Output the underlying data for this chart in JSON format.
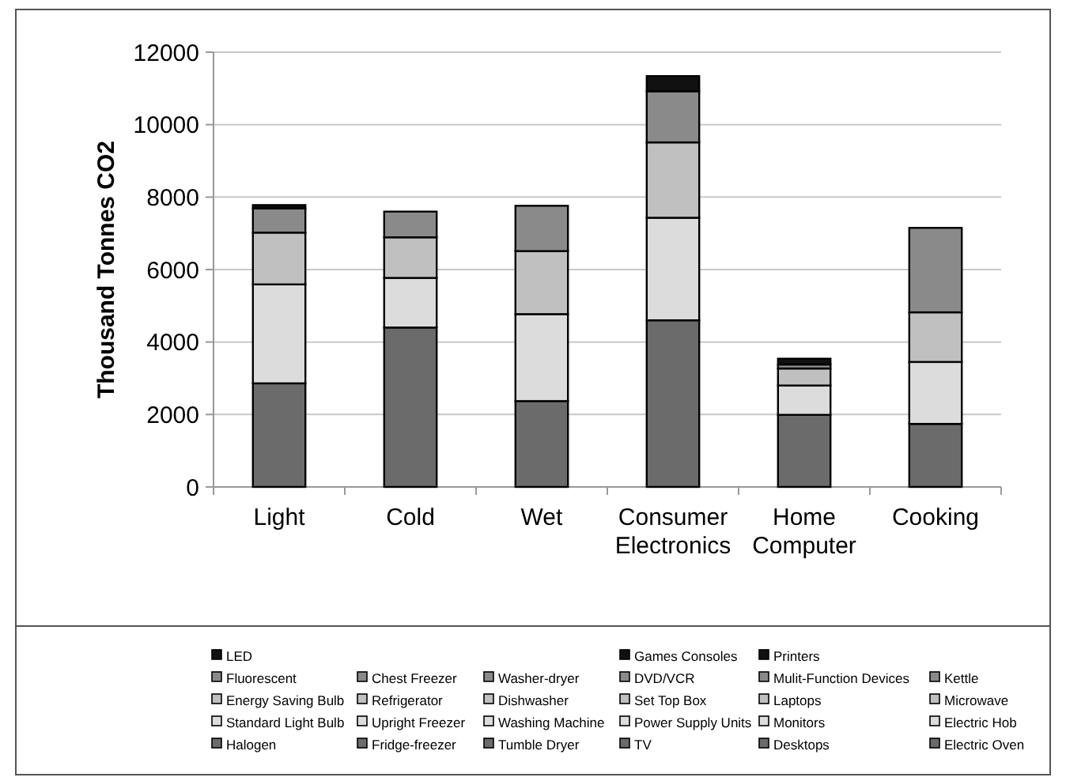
{
  "chart_data": {
    "type": "bar",
    "stacked": true,
    "ylabel": "Thousand Tonnes CO2",
    "categories": [
      "Light",
      "Cold",
      "Wet",
      "Consumer Electronics",
      "Home Computer",
      "Cooking"
    ],
    "ylim": [
      0,
      12000
    ],
    "yticks": [
      0,
      2000,
      4000,
      6000,
      8000,
      10000,
      12000
    ],
    "grid": "y",
    "legend": "bottom",
    "series": [
      {
        "name": "Halogen",
        "color": "#6b6b6b",
        "values": [
          2860,
          null,
          null,
          null,
          null,
          null
        ]
      },
      {
        "name": "Standard Light Bulb",
        "color": "#dcdcdc",
        "values": [
          2730,
          null,
          null,
          null,
          null,
          null
        ]
      },
      {
        "name": "Energy Saving Bulb",
        "color": "#c0c0c0",
        "values": [
          1430,
          null,
          null,
          null,
          null,
          null
        ]
      },
      {
        "name": "Fluorescent",
        "color": "#8a8a8a",
        "values": [
          670,
          null,
          null,
          null,
          null,
          null
        ]
      },
      {
        "name": "LED",
        "color": "#111111",
        "values": [
          90,
          null,
          null,
          null,
          null,
          null
        ]
      },
      {
        "name": "Fridge-freezer",
        "color": "#6b6b6b",
        "values": [
          null,
          4400,
          null,
          null,
          null,
          null
        ]
      },
      {
        "name": "Upright Freezer",
        "color": "#dcdcdc",
        "values": [
          null,
          1370,
          null,
          null,
          null,
          null
        ]
      },
      {
        "name": "Refrigerator",
        "color": "#c0c0c0",
        "values": [
          null,
          1120,
          null,
          null,
          null,
          null
        ]
      },
      {
        "name": "Chest Freezer",
        "color": "#8a8a8a",
        "values": [
          null,
          710,
          null,
          null,
          null,
          null
        ]
      },
      {
        "name": "Tumble Dryer",
        "color": "#6b6b6b",
        "values": [
          null,
          null,
          2370,
          null,
          null,
          null
        ]
      },
      {
        "name": "Washing Machine",
        "color": "#dcdcdc",
        "values": [
          null,
          null,
          2400,
          null,
          null,
          null
        ]
      },
      {
        "name": "Dishwasher",
        "color": "#c0c0c0",
        "values": [
          null,
          null,
          1740,
          null,
          null,
          null
        ]
      },
      {
        "name": "Washer-dryer",
        "color": "#8a8a8a",
        "values": [
          null,
          null,
          1250,
          null,
          null,
          null
        ]
      },
      {
        "name": "TV",
        "color": "#6b6b6b",
        "values": [
          null,
          null,
          null,
          4600,
          null,
          null
        ]
      },
      {
        "name": "Power Supply Units",
        "color": "#dcdcdc",
        "values": [
          null,
          null,
          null,
          2830,
          null,
          null
        ]
      },
      {
        "name": "Set Top Box",
        "color": "#c0c0c0",
        "values": [
          null,
          null,
          null,
          2080,
          null,
          null
        ]
      },
      {
        "name": "DVD/VCR",
        "color": "#8a8a8a",
        "values": [
          null,
          null,
          null,
          1410,
          null,
          null
        ]
      },
      {
        "name": "Games Consoles",
        "color": "#111111",
        "values": [
          null,
          null,
          null,
          420,
          null,
          null
        ]
      },
      {
        "name": "Desktops",
        "color": "#6b6b6b",
        "values": [
          null,
          null,
          null,
          null,
          1990,
          null
        ]
      },
      {
        "name": "Monitors",
        "color": "#dcdcdc",
        "values": [
          null,
          null,
          null,
          null,
          810,
          null
        ]
      },
      {
        "name": "Laptops",
        "color": "#c0c0c0",
        "values": [
          null,
          null,
          null,
          null,
          470,
          null
        ]
      },
      {
        "name": "Mulit-Function Devices",
        "color": "#8a8a8a",
        "values": [
          null,
          null,
          null,
          null,
          110,
          null
        ]
      },
      {
        "name": "Printers",
        "color": "#111111",
        "values": [
          null,
          null,
          null,
          null,
          160,
          null
        ]
      },
      {
        "name": "Electric Oven",
        "color": "#6b6b6b",
        "values": [
          null,
          null,
          null,
          null,
          null,
          1740
        ]
      },
      {
        "name": "Electric Hob",
        "color": "#dcdcdc",
        "values": [
          null,
          null,
          null,
          null,
          null,
          1710
        ]
      },
      {
        "name": "Microwave",
        "color": "#c0c0c0",
        "values": [
          null,
          null,
          null,
          null,
          null,
          1370
        ]
      },
      {
        "name": "Kettle",
        "color": "#8a8a8a",
        "values": [
          null,
          null,
          null,
          null,
          null,
          2330
        ]
      }
    ]
  }
}
